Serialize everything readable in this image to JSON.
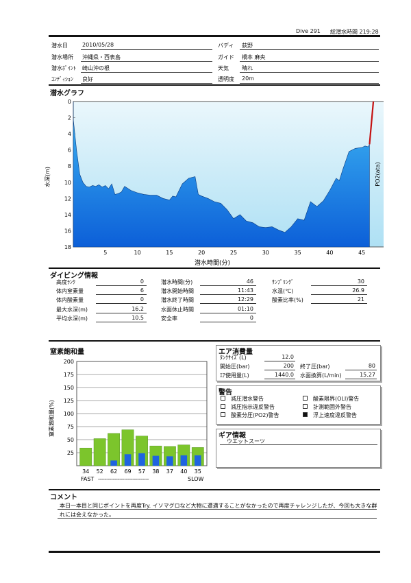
{
  "header": {
    "dive_no": "Dive 291",
    "total_time": "総潜水時間 219:28"
  },
  "info": {
    "date": {
      "label": "潜水日",
      "value": "2010/05/28"
    },
    "place": {
      "label": "潜水場所",
      "value": "沖縄県・西表島"
    },
    "point": {
      "label": "潜水ﾎﾟｲﾝﾄ",
      "value": "崎山沖の根"
    },
    "condition": {
      "label": "ｺﾝﾃﾞｨｼｮﾝ",
      "value": "良好"
    },
    "buddy": {
      "label": "バディ",
      "value": "荻野"
    },
    "guide": {
      "label": "ガイド",
      "value": "橋本 麻央"
    },
    "weather": {
      "label": "天気",
      "value": "晴れ"
    },
    "visibility": {
      "label": "透明度",
      "value": "20m"
    }
  },
  "graph": {
    "title": "潜水グラフ",
    "ylabel": "水深(m)",
    "y2label": "PO2(ata)",
    "xlabel": "潜水時間(分)"
  },
  "chart_data": [
    {
      "type": "area",
      "title": "潜水グラフ",
      "xlabel": "潜水時間(分)",
      "ylabel": "水深(m)",
      "y2label": "PO2(ata)",
      "xlim": [
        0,
        50
      ],
      "ylim": [
        18,
        0
      ],
      "x_ticks": [
        5,
        10,
        15,
        20,
        25,
        30,
        35,
        40,
        45
      ],
      "y_ticks": [
        0,
        2,
        4,
        6,
        8,
        10,
        12,
        14,
        16,
        18
      ],
      "y2_ticks": [
        "0.21",
        "0.25",
        "0.29",
        "0.34",
        "0.38",
        "0.42",
        "0.46",
        "0.50",
        "0.55",
        "0.59"
      ],
      "series": [
        {
          "x": [
            0,
            0.5,
            1,
            1.5,
            2,
            2.5,
            3,
            3.5,
            4,
            4.5,
            5,
            5.5,
            6,
            6.5,
            7,
            7.5,
            8,
            9,
            10,
            11,
            12,
            13,
            14,
            15,
            15.5,
            16,
            17,
            18,
            19,
            19.5,
            20,
            21,
            22,
            23,
            24,
            25,
            26,
            27,
            28,
            29,
            30,
            31,
            32,
            33,
            34,
            35,
            36,
            37,
            38,
            39,
            40,
            41,
            41.5,
            42,
            43,
            44,
            45,
            45.5,
            46,
            46.2
          ],
          "y": [
            2.2,
            6,
            9,
            10,
            10.5,
            10.6,
            10.4,
            10.5,
            10.3,
            10.6,
            10.4,
            10.8,
            10.2,
            11.5,
            11.4,
            11.2,
            10.5,
            11,
            11.3,
            11.5,
            11.6,
            11.6,
            12,
            12.2,
            11.7,
            11.8,
            10.2,
            9.5,
            9.3,
            11.5,
            11.7,
            12,
            12.4,
            12.6,
            13.4,
            14.5,
            14,
            14.8,
            15,
            15.5,
            15.6,
            15.5,
            15.9,
            16.2,
            15.5,
            14.5,
            14.7,
            12.4,
            13,
            12.3,
            11,
            9.5,
            9.8,
            8.5,
            6.2,
            5.8,
            5.7,
            5.5,
            5.6,
            5.3
          ]
        }
      ],
      "ascent_warning_segment": {
        "x": [
          46.2,
          46.8
        ],
        "y": [
          5.3,
          0
        ]
      }
    },
    {
      "type": "bar",
      "title": "窒素飽和量",
      "ylabel": "窒素飽和量(%)",
      "ylim": [
        0,
        200
      ],
      "y_ticks": [
        25,
        50,
        75,
        100,
        125,
        150,
        175,
        200
      ],
      "categories": [
        "34",
        "52",
        "62",
        "69",
        "57",
        "38",
        "37",
        "40",
        "35"
      ],
      "series": [
        {
          "values": [
            34,
            52,
            62,
            69,
            57,
            38,
            37,
            40,
            35
          ],
          "color": "#7cc52c"
        },
        {
          "values": [
            0,
            0,
            10,
            22,
            24,
            19,
            18,
            20,
            20
          ],
          "color": "#1f64e0"
        }
      ],
      "x_caption_left": "FAST",
      "x_caption_right": "SLOW"
    }
  ],
  "dive_info": {
    "title": "ダイビング情報",
    "col1": [
      {
        "label": "高度ﾗﾝｸ",
        "value": "0"
      },
      {
        "label": "体内窒素量",
        "value": "6"
      },
      {
        "label": "体内酸素量",
        "value": "0"
      },
      {
        "label": "最大水深(m)",
        "value": "16.2"
      },
      {
        "label": "平均水深(m)",
        "value": "10.5"
      }
    ],
    "col2": [
      {
        "label": "潜水時間(分)",
        "value": "46"
      },
      {
        "label": "潜水開始時間",
        "value": "11:43"
      },
      {
        "label": "潜水終了時間",
        "value": "12:29"
      },
      {
        "label": "水面休止時間",
        "value": "01:10"
      },
      {
        "label": "安全率",
        "value": "0"
      }
    ],
    "col3": [
      {
        "label": "ｻﾝﾌﾟﾘﾝｸﾞ",
        "value": "30"
      },
      {
        "label": "水温(℃)",
        "value": "26.9"
      },
      {
        "label": "酸素比率(%)",
        "value": "21"
      }
    ]
  },
  "nitrogen": {
    "title": "窒素飽和量",
    "ylabel": "窒素飽和量(%)",
    "fast": "FAST",
    "slow": "SLOW",
    "dashes": "-------------------------------"
  },
  "air": {
    "title": "エア消費量",
    "tank": {
      "label": "ﾀﾝｸｻｲｽﾞ(L)",
      "value": "12.0"
    },
    "start": {
      "label": "開始圧(bar)",
      "value": "200"
    },
    "end": {
      "label": "終了圧(bar)",
      "value": "80"
    },
    "used": {
      "label": "ｴｱ使用量(L)",
      "value": "1440.0"
    },
    "surface": {
      "label": "水面換算(L/min)",
      "value": "15.27"
    }
  },
  "warnings": {
    "title": "警告",
    "items": [
      {
        "label": "減圧潜水警告",
        "checked": false
      },
      {
        "label": "減圧指示違反警告",
        "checked": false
      },
      {
        "label": "酸素分圧(PO2)警告",
        "checked": false
      },
      {
        "label": "酸素限界(OLI)警告",
        "checked": false
      },
      {
        "label": "計測範囲外警告",
        "checked": false
      },
      {
        "label": "浮上速度違反警告",
        "checked": true
      }
    ]
  },
  "gear": {
    "title": "ギア情報",
    "value": "ウエットスーツ"
  },
  "comment": {
    "title": "コメント",
    "line1": "本日一本目と同じポイントを再度Try. イソマグロなど大物に遭遇することがなかったので再度チャレンジしたが、今回も大きな群",
    "line2": "れには会えなかった。"
  }
}
